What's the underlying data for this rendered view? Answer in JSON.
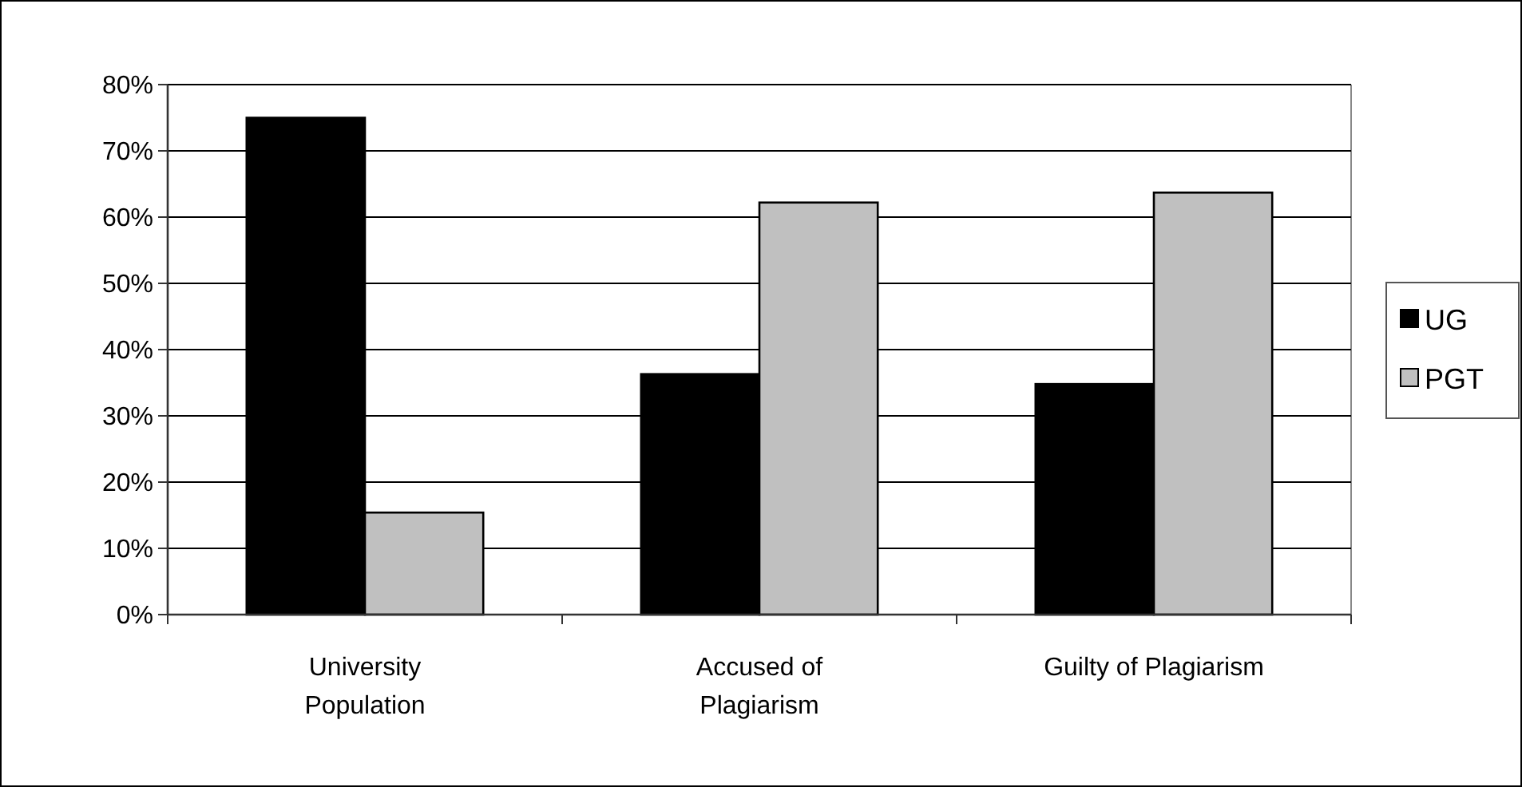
{
  "chart_data": {
    "type": "bar",
    "categories": [
      "University\nPopulation",
      "Accused of\nPlagiarism",
      "Guilty of Plagiarism"
    ],
    "series": [
      {
        "name": "UG",
        "color": "#000000",
        "values": [
          75,
          36.3,
          34.8
        ]
      },
      {
        "name": "PGT",
        "color": "#c0c0c0",
        "values": [
          15.4,
          62.2,
          63.7
        ]
      }
    ],
    "ylim": [
      0,
      80
    ],
    "yticks": [
      {
        "value": 0,
        "label": "0%"
      },
      {
        "value": 10,
        "label": "10%"
      },
      {
        "value": 20,
        "label": "20%"
      },
      {
        "value": 30,
        "label": "30%"
      },
      {
        "value": 40,
        "label": "40%"
      },
      {
        "value": 50,
        "label": "50%"
      },
      {
        "value": 60,
        "label": "60%"
      },
      {
        "value": 70,
        "label": "70%"
      },
      {
        "value": 80,
        "label": "80%"
      }
    ],
    "grid": "y",
    "legend": "right"
  }
}
